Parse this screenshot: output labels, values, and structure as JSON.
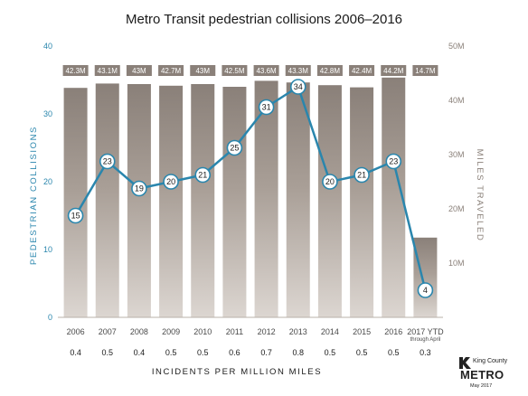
{
  "chart_data": {
    "type": "bar",
    "title": "Metro Transit pedestrian collisions 2006–2016",
    "categories": [
      "2006",
      "2007",
      "2008",
      "2009",
      "2010",
      "2011",
      "2012",
      "2013",
      "2014",
      "2015",
      "2016",
      "2017 YTD"
    ],
    "category_note": "through April",
    "bar_series": {
      "values": [
        42.3,
        43.1,
        43.0,
        42.7,
        43.0,
        42.5,
        43.6,
        43.3,
        42.8,
        42.4,
        44.2,
        14.7
      ],
      "labels": [
        "42.3M",
        "43.1M",
        "43M",
        "42.7M",
        "43M",
        "42.5M",
        "43.6M",
        "43.3M",
        "42.8M",
        "42.4M",
        "44.2M",
        "14.7M"
      ],
      "axis": "right",
      "color": "#aaa098"
    },
    "line_series": {
      "values": [
        15,
        23,
        19,
        20,
        21,
        25,
        31,
        34,
        20,
        21,
        23,
        4
      ],
      "axis": "left",
      "color": "#2a86ad"
    },
    "ylabel": "PEDESTRIAN COLLISIONS",
    "ylim": [
      0,
      40
    ],
    "yticks": [
      "0",
      "10",
      "20",
      "30",
      "40"
    ],
    "y2label": "MILES TRAVELED",
    "y2lim": [
      0,
      50
    ],
    "y2ticks": [
      "10M",
      "20M",
      "30M",
      "40M",
      "50M"
    ],
    "rate_values": [
      "0.4",
      "0.5",
      "0.4",
      "0.5",
      "0.5",
      "0.6",
      "0.7",
      "0.8",
      "0.5",
      "0.5",
      "0.5",
      "0.3"
    ],
    "xlabel": "INCIDENTS PER MILLION MILES",
    "grid": false,
    "legend": "none"
  },
  "branding": {
    "org": "King County",
    "name": "METRO",
    "date": "May 2017"
  },
  "colors": {
    "line": "#2a86ad",
    "bar": "#aaa098",
    "label_box": "#8a8079",
    "right_axis": "#8a8079"
  }
}
